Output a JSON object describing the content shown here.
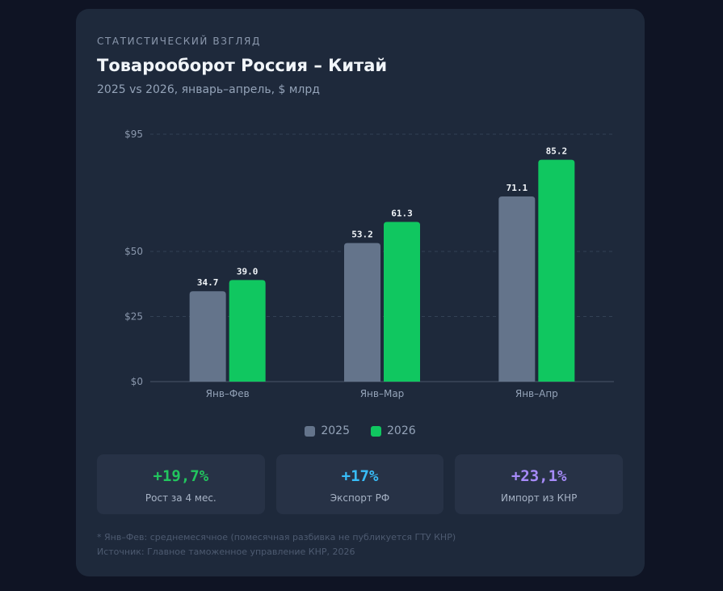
{
  "header": {
    "eyebrow": "СТАТИСТИЧЕСКИЙ ВЗГЛЯД",
    "title": "Товарооборот Россия – Китай",
    "subtitle": "2025 vs 2026, январь–апрель, $ млрд"
  },
  "colors": {
    "series_2025": "#64748b",
    "series_2026": "#10c760",
    "stat_growth": "#22c55e",
    "stat_export": "#38bdf8",
    "stat_import": "#a78bfa"
  },
  "chart_data": {
    "type": "bar",
    "categories": [
      "Янв–Фев",
      "Янв–Мар",
      "Янв–Апр"
    ],
    "series": [
      {
        "name": "2025",
        "values": [
          34.7,
          53.2,
          71.1
        ],
        "labels": [
          "34.7",
          "53.2",
          "71.1"
        ]
      },
      {
        "name": "2026",
        "values": [
          39.0,
          61.3,
          85.2
        ],
        "labels": [
          "39.0",
          "61.3",
          "85.2"
        ]
      }
    ],
    "ylim": [
      0,
      95
    ],
    "yticks": [
      0,
      25,
      50,
      95
    ],
    "ytick_labels": [
      "$0",
      "$25",
      "$50",
      "$95"
    ],
    "grid": true,
    "legend": "bottom-center"
  },
  "stats": [
    {
      "value": "+19,7%",
      "label": "Рост за 4 мес."
    },
    {
      "value": "+17%",
      "label": "Экспорт РФ"
    },
    {
      "value": "+23,1%",
      "label": "Импорт из КНР"
    }
  ],
  "footnotes": {
    "note": "* Янв–Фев: среднемесячное (помесячная разбивка не публикуется ГТУ КНР)",
    "source": "Источник: Главное таможенное управление КНР, 2026"
  }
}
